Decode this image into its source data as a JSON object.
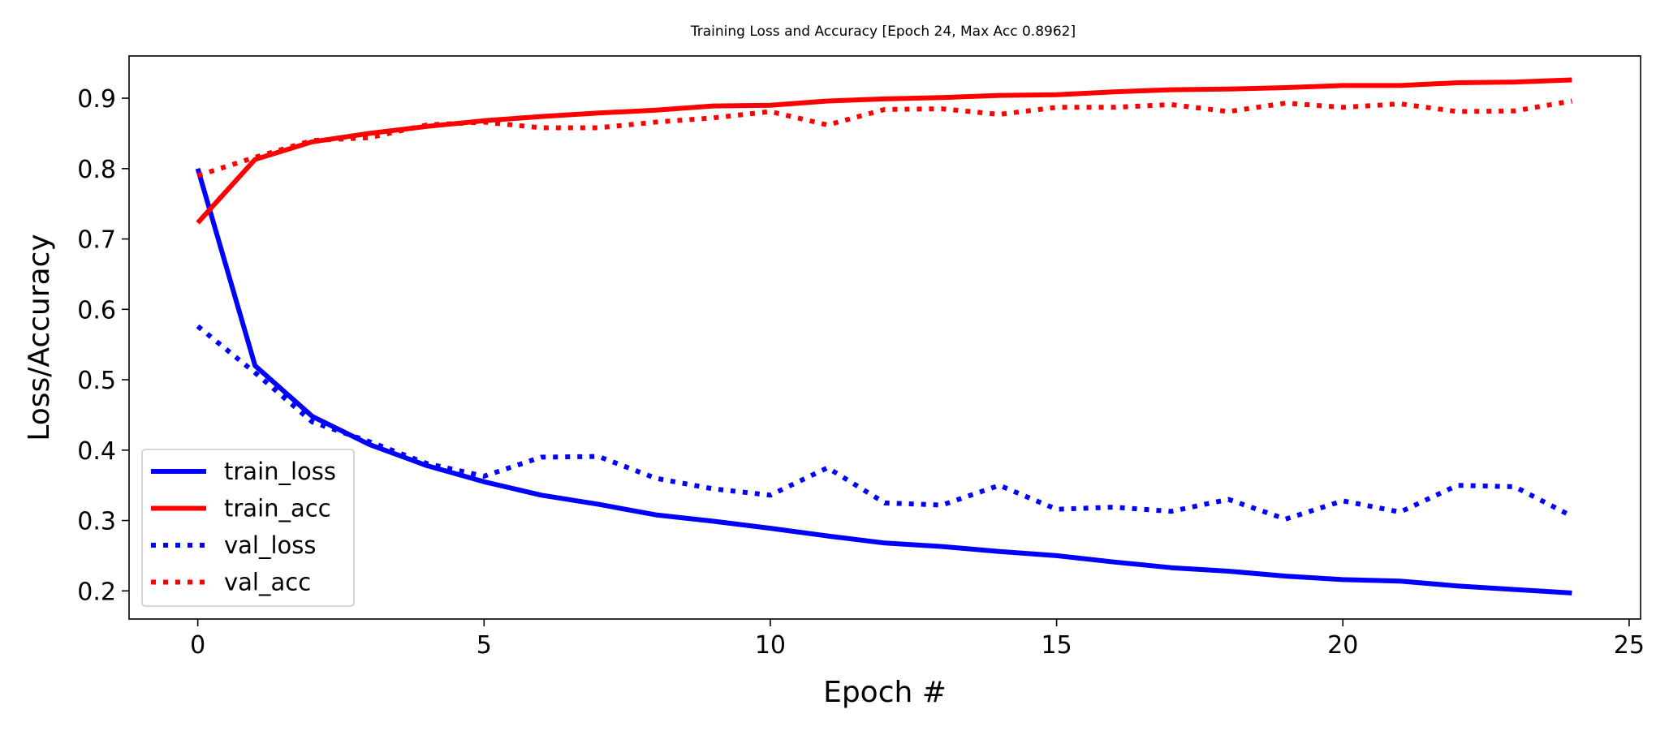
{
  "chart_data": {
    "type": "line",
    "title": "Training Loss and Accuracy [Epoch 24, Max Acc 0.8962]",
    "xlabel": "Epoch #",
    "ylabel": "Loss/Accuracy",
    "xlim": [
      -1.2,
      25.2
    ],
    "ylim": [
      0.16,
      0.96
    ],
    "xticks": [
      0,
      5,
      10,
      15,
      20,
      25
    ],
    "yticks": [
      0.2,
      0.3,
      0.4,
      0.5,
      0.6,
      0.7,
      0.8,
      0.9
    ],
    "grid": false,
    "legend_position": "lower-left",
    "x": [
      0,
      1,
      2,
      3,
      4,
      5,
      6,
      7,
      8,
      9,
      10,
      11,
      12,
      13,
      14,
      15,
      16,
      17,
      18,
      19,
      20,
      21,
      22,
      23,
      24
    ],
    "series": [
      {
        "name": "train_loss",
        "color": "#0000ff",
        "style": "solid",
        "values": [
          0.8,
          0.52,
          0.448,
          0.408,
          0.378,
          0.355,
          0.336,
          0.323,
          0.308,
          0.299,
          0.289,
          0.278,
          0.268,
          0.263,
          0.256,
          0.25,
          0.241,
          0.233,
          0.228,
          0.221,
          0.216,
          0.214,
          0.207,
          0.202,
          0.197
        ]
      },
      {
        "name": "train_acc",
        "color": "#ff0000",
        "style": "solid",
        "values": [
          0.723,
          0.813,
          0.838,
          0.85,
          0.86,
          0.868,
          0.874,
          0.879,
          0.883,
          0.889,
          0.89,
          0.896,
          0.899,
          0.901,
          0.904,
          0.905,
          0.909,
          0.912,
          0.913,
          0.915,
          0.918,
          0.918,
          0.922,
          0.923,
          0.926
        ]
      },
      {
        "name": "val_loss",
        "color": "#0000ff",
        "style": "dotted",
        "values": [
          0.576,
          0.51,
          0.44,
          0.412,
          0.381,
          0.363,
          0.39,
          0.391,
          0.36,
          0.345,
          0.336,
          0.375,
          0.325,
          0.322,
          0.35,
          0.316,
          0.319,
          0.313,
          0.33,
          0.302,
          0.328,
          0.312,
          0.35,
          0.348,
          0.306
        ]
      },
      {
        "name": "val_acc",
        "color": "#ff0000",
        "style": "dotted",
        "values": [
          0.79,
          0.816,
          0.84,
          0.844,
          0.862,
          0.866,
          0.858,
          0.858,
          0.866,
          0.872,
          0.881,
          0.862,
          0.884,
          0.885,
          0.877,
          0.887,
          0.887,
          0.891,
          0.881,
          0.893,
          0.887,
          0.892,
          0.881,
          0.882,
          0.896
        ]
      }
    ]
  }
}
